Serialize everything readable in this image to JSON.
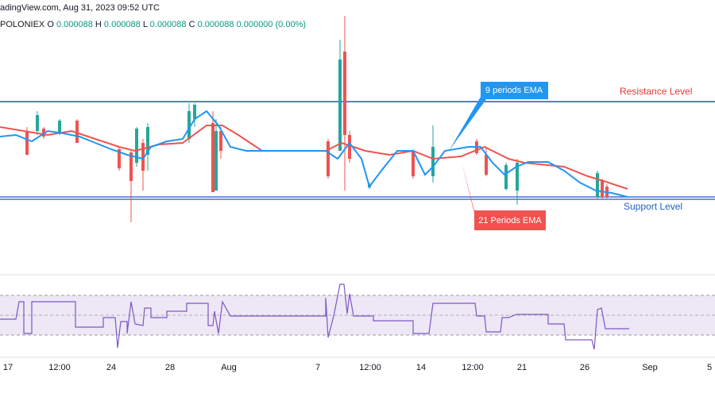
{
  "header": {
    "source": "adingView.com, Aug 31, 2023 09:52 UTC",
    "exchange": "POLONIEX",
    "ohlc": [
      {
        "key": "O",
        "value": "0.000088"
      },
      {
        "key": "H",
        "value": "0.000088"
      },
      {
        "key": "L",
        "value": "0.000088"
      },
      {
        "key": "C",
        "value": "0.000088"
      }
    ],
    "change": "0.000000 (0.00%)"
  },
  "annotations": {
    "resistance": "Resistance Level",
    "support": "Support Level",
    "ema9": "9 periods EMA",
    "ema21": "21 Periods EMA"
  },
  "x_axis": [
    "17",
    "12:00",
    "24",
    "28",
    "Aug",
    "7",
    "12:00",
    "14",
    "12:00",
    "21",
    "26",
    "Sep",
    "5"
  ]
}
